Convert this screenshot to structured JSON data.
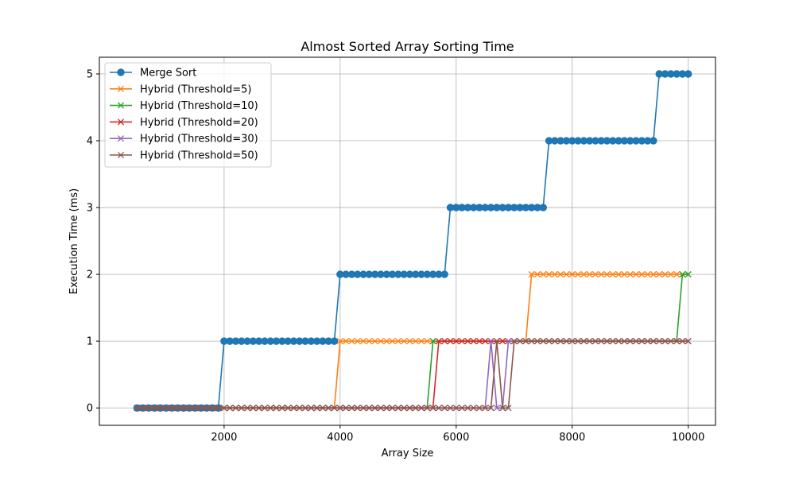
{
  "chart_data": {
    "type": "line",
    "title": "Almost Sorted Array Sorting Time",
    "xlabel": "Array Size",
    "ylabel": "Execution Time (ms)",
    "xlim": [
      -150,
      10470
    ],
    "ylim": [
      -0.26,
      5.25
    ],
    "xticks": [
      2000,
      4000,
      6000,
      8000,
      10000
    ],
    "yticks": [
      0,
      1,
      2,
      3,
      4,
      5
    ],
    "grid": true,
    "legend_position": "top-left",
    "x_start": 500,
    "x_step": 100,
    "series": [
      {
        "name": "Merge Sort",
        "color": "#1f77b4",
        "marker": "circle",
        "segments": [
          [
            500,
            1900,
            0
          ],
          [
            2000,
            3900,
            1
          ],
          [
            4000,
            5800,
            2
          ],
          [
            5900,
            7500,
            3
          ],
          [
            7600,
            9400,
            4
          ],
          [
            9500,
            10000,
            5
          ]
        ]
      },
      {
        "name": "Hybrid (Threshold=5)",
        "color": "#ff7f0e",
        "marker": "x",
        "segments": [
          [
            500,
            3900,
            0
          ],
          [
            4000,
            7200,
            1
          ],
          [
            7300,
            10000,
            2
          ]
        ]
      },
      {
        "name": "Hybrid (Threshold=10)",
        "color": "#2ca02c",
        "marker": "x",
        "segments": [
          [
            500,
            5500,
            0
          ],
          [
            5600,
            9800,
            1
          ],
          [
            9900,
            10000,
            2
          ]
        ]
      },
      {
        "name": "Hybrid (Threshold=20)",
        "color": "#d62728",
        "marker": "x",
        "segments": [
          [
            500,
            5600,
            0
          ],
          [
            5700,
            10000,
            1
          ]
        ]
      },
      {
        "name": "Hybrid (Threshold=30)",
        "color": "#9467bd",
        "marker": "x",
        "segments": [
          [
            500,
            6500,
            0
          ],
          [
            6600,
            6600,
            1
          ],
          [
            6700,
            6800,
            0
          ],
          [
            6900,
            10000,
            1
          ]
        ]
      },
      {
        "name": "Hybrid (Threshold=50)",
        "color": "#8c564b",
        "marker": "x",
        "segments": [
          [
            500,
            6600,
            0
          ],
          [
            6700,
            6700,
            1
          ],
          [
            6800,
            6900,
            0
          ],
          [
            7000,
            10000,
            1
          ]
        ]
      }
    ]
  }
}
